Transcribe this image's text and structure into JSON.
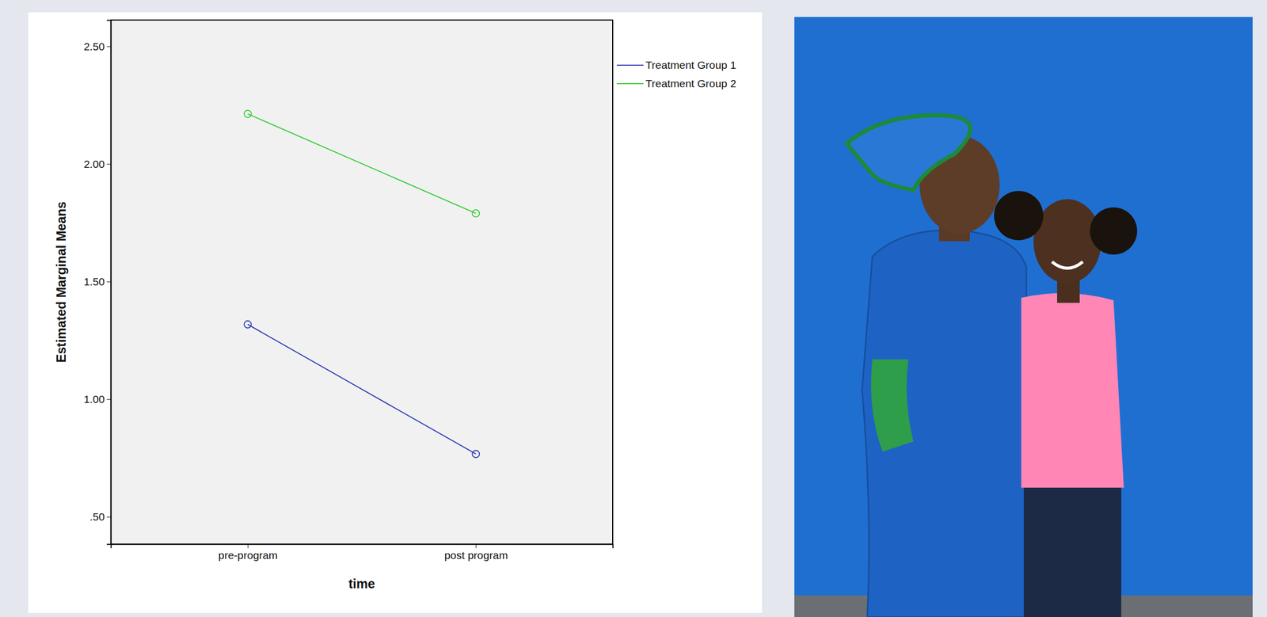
{
  "chart_data": {
    "type": "line",
    "x_label": "time",
    "y_label": "Estimated Marginal Means",
    "categories": [
      "pre-program",
      "post program"
    ],
    "series": [
      {
        "name": "Treatment Group 1",
        "color": "#2d3bb4",
        "marker": "circle",
        "line_style": "solid",
        "values": [
          1.318,
          0.767
        ]
      },
      {
        "name": "Treatment Group 2",
        "color": "#33cc33",
        "marker": "circle",
        "line_style": "solid",
        "values": [
          2.213,
          1.79
        ]
      }
    ],
    "ylim": [
      0.384,
      2.612
    ],
    "yticks": [
      {
        "value": 0.5,
        "label": ".50"
      },
      {
        "value": 1,
        "label": "1.00"
      },
      {
        "value": 1.5,
        "label": "1.50"
      },
      {
        "value": 2,
        "label": "2.00"
      },
      {
        "value": 2.5,
        "label": "2.50"
      }
    ],
    "grid": false,
    "legend": "top-right"
  }
}
